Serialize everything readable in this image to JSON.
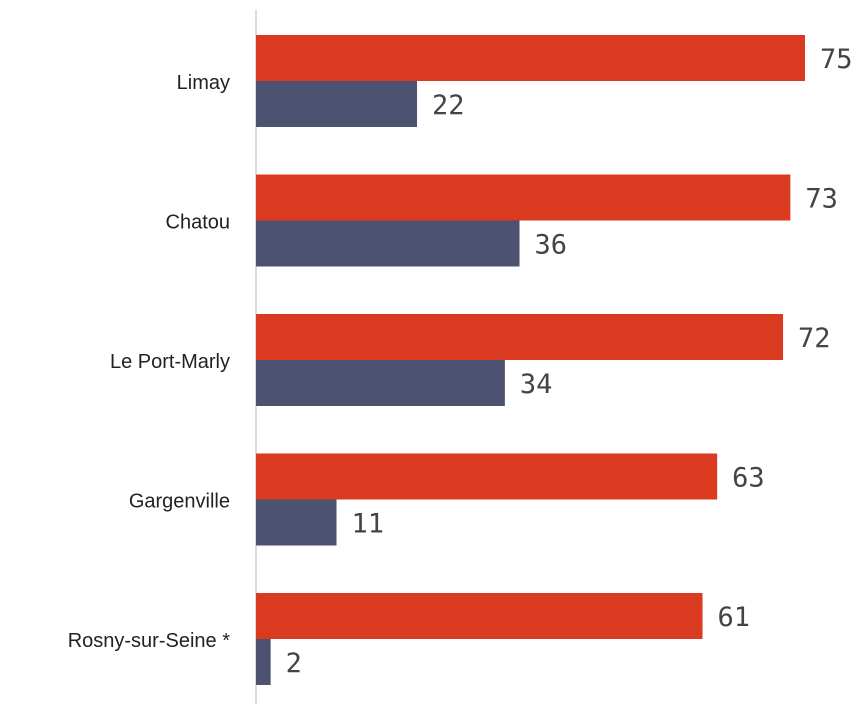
{
  "chart_data": {
    "type": "bar",
    "orientation": "horizontal",
    "categories": [
      "Limay",
      "Chatou",
      "Le Port-Marly",
      "Gargenville",
      "Rosny-sur-Seine *"
    ],
    "series": [
      {
        "color": "#d93a20",
        "values": [
          75,
          73,
          72,
          63,
          61
        ]
      },
      {
        "color": "#4d5270",
        "values": [
          22,
          36,
          34,
          11,
          2
        ]
      }
    ],
    "xlim": [
      0,
      75
    ],
    "grid": false,
    "legend": "none",
    "data_labels": true
  }
}
